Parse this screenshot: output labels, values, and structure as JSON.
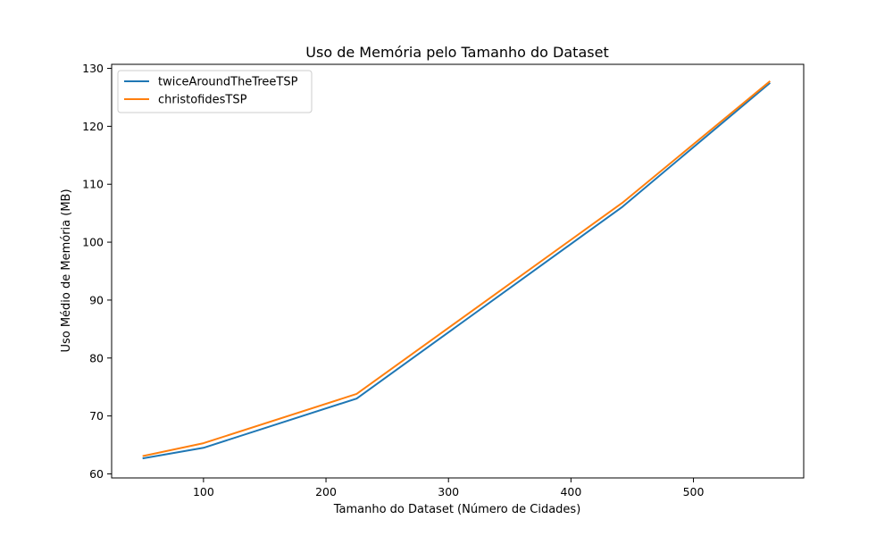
{
  "chart_data": {
    "type": "line",
    "title": "Uso de Memória pelo Tamanho do Dataset",
    "xlabel": "Tamanho do Dataset (Número de Cidades)",
    "ylabel": "Uso Médio de Memória (MB)",
    "xlim": [
      25,
      590
    ],
    "ylim": [
      59.3,
      130.7
    ],
    "xticks": [
      100,
      200,
      300,
      400,
      500
    ],
    "yticks": [
      60,
      70,
      80,
      90,
      100,
      110,
      120,
      130
    ],
    "grid": false,
    "legend_position": "upper-left",
    "series": [
      {
        "name": "twiceAroundTheTreeTSP",
        "color": "#1f77b4",
        "x": [
          51,
          100,
          225,
          442,
          562
        ],
        "y": [
          62.7,
          64.5,
          73.0,
          106.1,
          127.4
        ]
      },
      {
        "name": "christofidesTSP",
        "color": "#ff7f0e",
        "x": [
          51,
          100,
          225,
          442,
          562
        ],
        "y": [
          63.1,
          65.3,
          73.8,
          106.8,
          127.7
        ]
      }
    ]
  }
}
